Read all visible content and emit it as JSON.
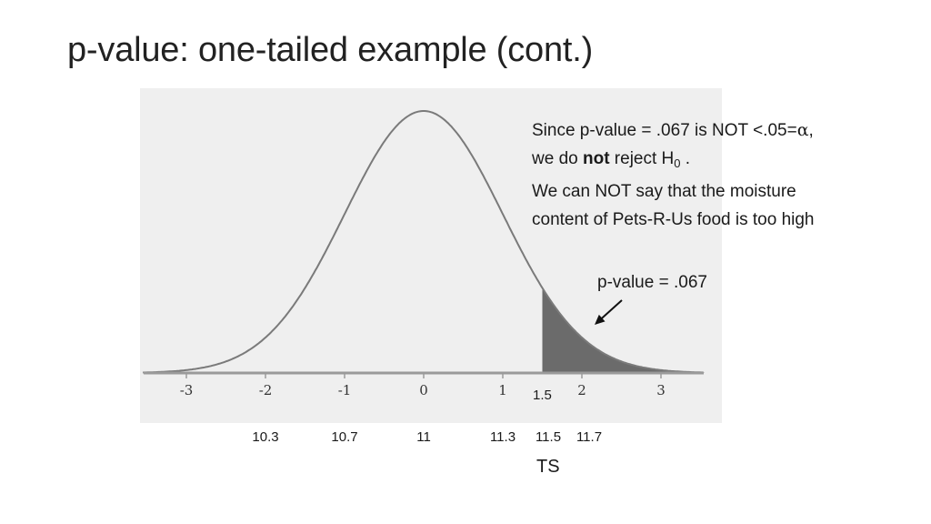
{
  "slide": {
    "title": "p-value: one-tailed example (cont.)"
  },
  "note": {
    "line1_prefix": "Since p-value = .067 is NOT <.05=",
    "alpha_symbol": "α",
    "line1_suffix": ",",
    "line2_pre": "we do ",
    "line2_bold": "not",
    "line2_post": " reject H",
    "line2_sub": "0",
    "line2_end": " .",
    "line3": "We can NOT say that the moisture",
    "line4": "content of Pets-R-Us food is too high"
  },
  "pvalue_label": "p-value = .067",
  "z_marker": "1.5",
  "ts_label": "TS",
  "chart_data": {
    "type": "area",
    "distribution": "standard normal",
    "xlim": [
      -3.5,
      3.5
    ],
    "std_ticks": [
      "-3",
      "-2",
      "-1",
      "0",
      "1",
      "2",
      "3"
    ],
    "shaded_from": 1.5,
    "shaded_area": 0.067,
    "raw_ticks": [
      {
        "label": "10.3",
        "z": -2
      },
      {
        "label": "10.7",
        "z": -1
      },
      {
        "label": "11",
        "z": 0
      },
      {
        "label": "11.3",
        "z": 1
      },
      {
        "label": "11.5",
        "z": 1.5
      },
      {
        "label": "11.7",
        "z": 2
      }
    ],
    "colors": {
      "curve": "#7a7a7a",
      "shade": "#6b6b6b",
      "panel": "#efefef",
      "axis": "#9a9a9a"
    }
  }
}
